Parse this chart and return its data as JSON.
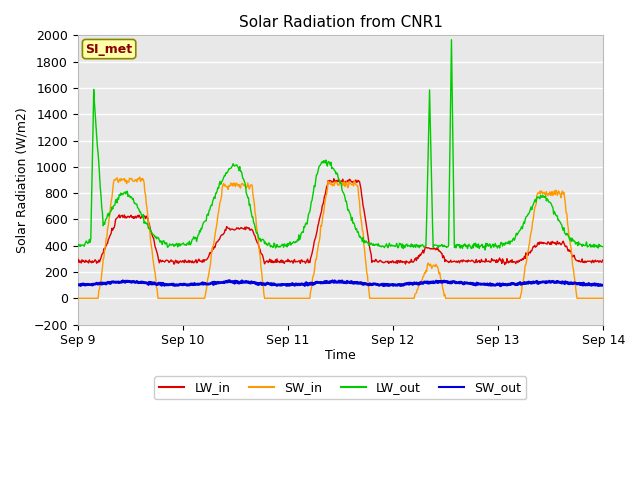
{
  "title": "Solar Radiation from CNR1",
  "ylabel": "Solar Radiation (W/m2)",
  "xlabel": "Time",
  "annotation": "SI_met",
  "ylim": [
    -200,
    2000
  ],
  "yticks": [
    -200,
    0,
    200,
    400,
    600,
    800,
    1000,
    1200,
    1400,
    1600,
    1800,
    2000
  ],
  "colors": {
    "LW_in": "#dd0000",
    "SW_in": "#ff9900",
    "LW_out": "#00cc00",
    "SW_out": "#0000dd"
  },
  "plot_bg": "#e8e8e8",
  "fig_bg": "#ffffff",
  "grid_color": "#ffffff",
  "x_tick_labels": [
    "Sep 9",
    "Sep 10",
    "Sep 11",
    "Sep 12",
    "Sep 13",
    "Sep 14"
  ],
  "x_tick_positions": [
    0,
    144,
    288,
    432,
    576,
    720
  ],
  "figsize": [
    6.4,
    4.8
  ],
  "dpi": 100
}
